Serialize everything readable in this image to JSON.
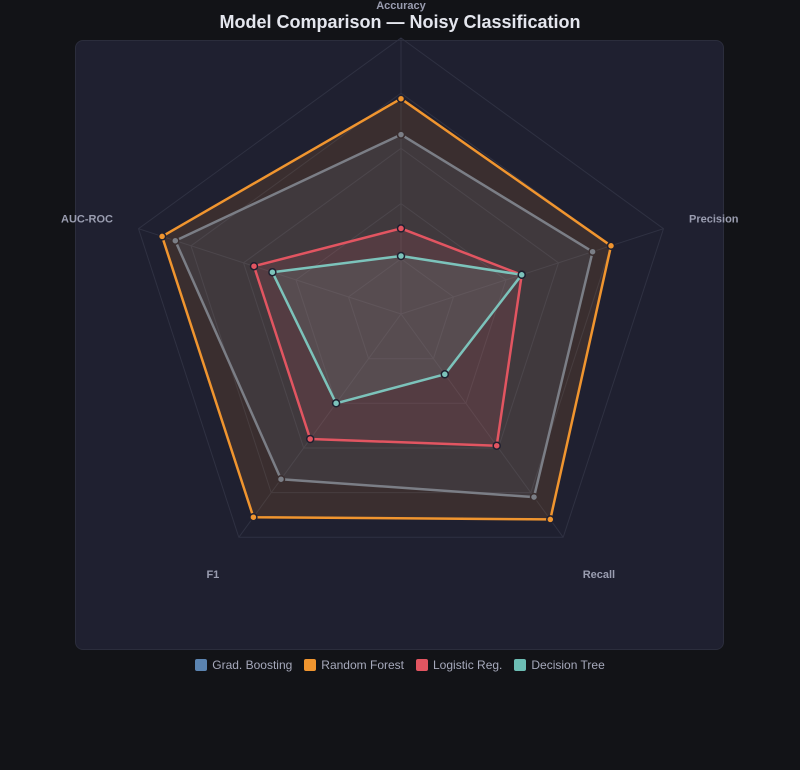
{
  "title": "Model Comparison — Noisy Classification",
  "chart_data": {
    "type": "radar",
    "axes": [
      "Accuracy",
      "Precision",
      "Recall",
      "F1",
      "AUC-ROC"
    ],
    "range": [
      0,
      1
    ],
    "levels": 5,
    "series": [
      {
        "name": "Grad. Boosting",
        "color": "#5b84b1",
        "line_color": "#6a7b93",
        "values": [
          0.65,
          0.73,
          0.82,
          0.74,
          0.86
        ]
      },
      {
        "name": "Random Forest",
        "color": "#f0952f",
        "line_color": "#f0952f",
        "values": [
          0.78,
          0.8,
          0.92,
          0.91,
          0.91
        ]
      },
      {
        "name": "Logistic Reg.",
        "color": "#e25561",
        "line_color": "#e25561",
        "values": [
          0.31,
          0.46,
          0.59,
          0.56,
          0.56
        ]
      },
      {
        "name": "Decision Tree",
        "color": "#6cbdb4",
        "line_color": "#7cc3bb",
        "values": [
          0.21,
          0.46,
          0.27,
          0.4,
          0.49
        ]
      }
    ]
  }
}
